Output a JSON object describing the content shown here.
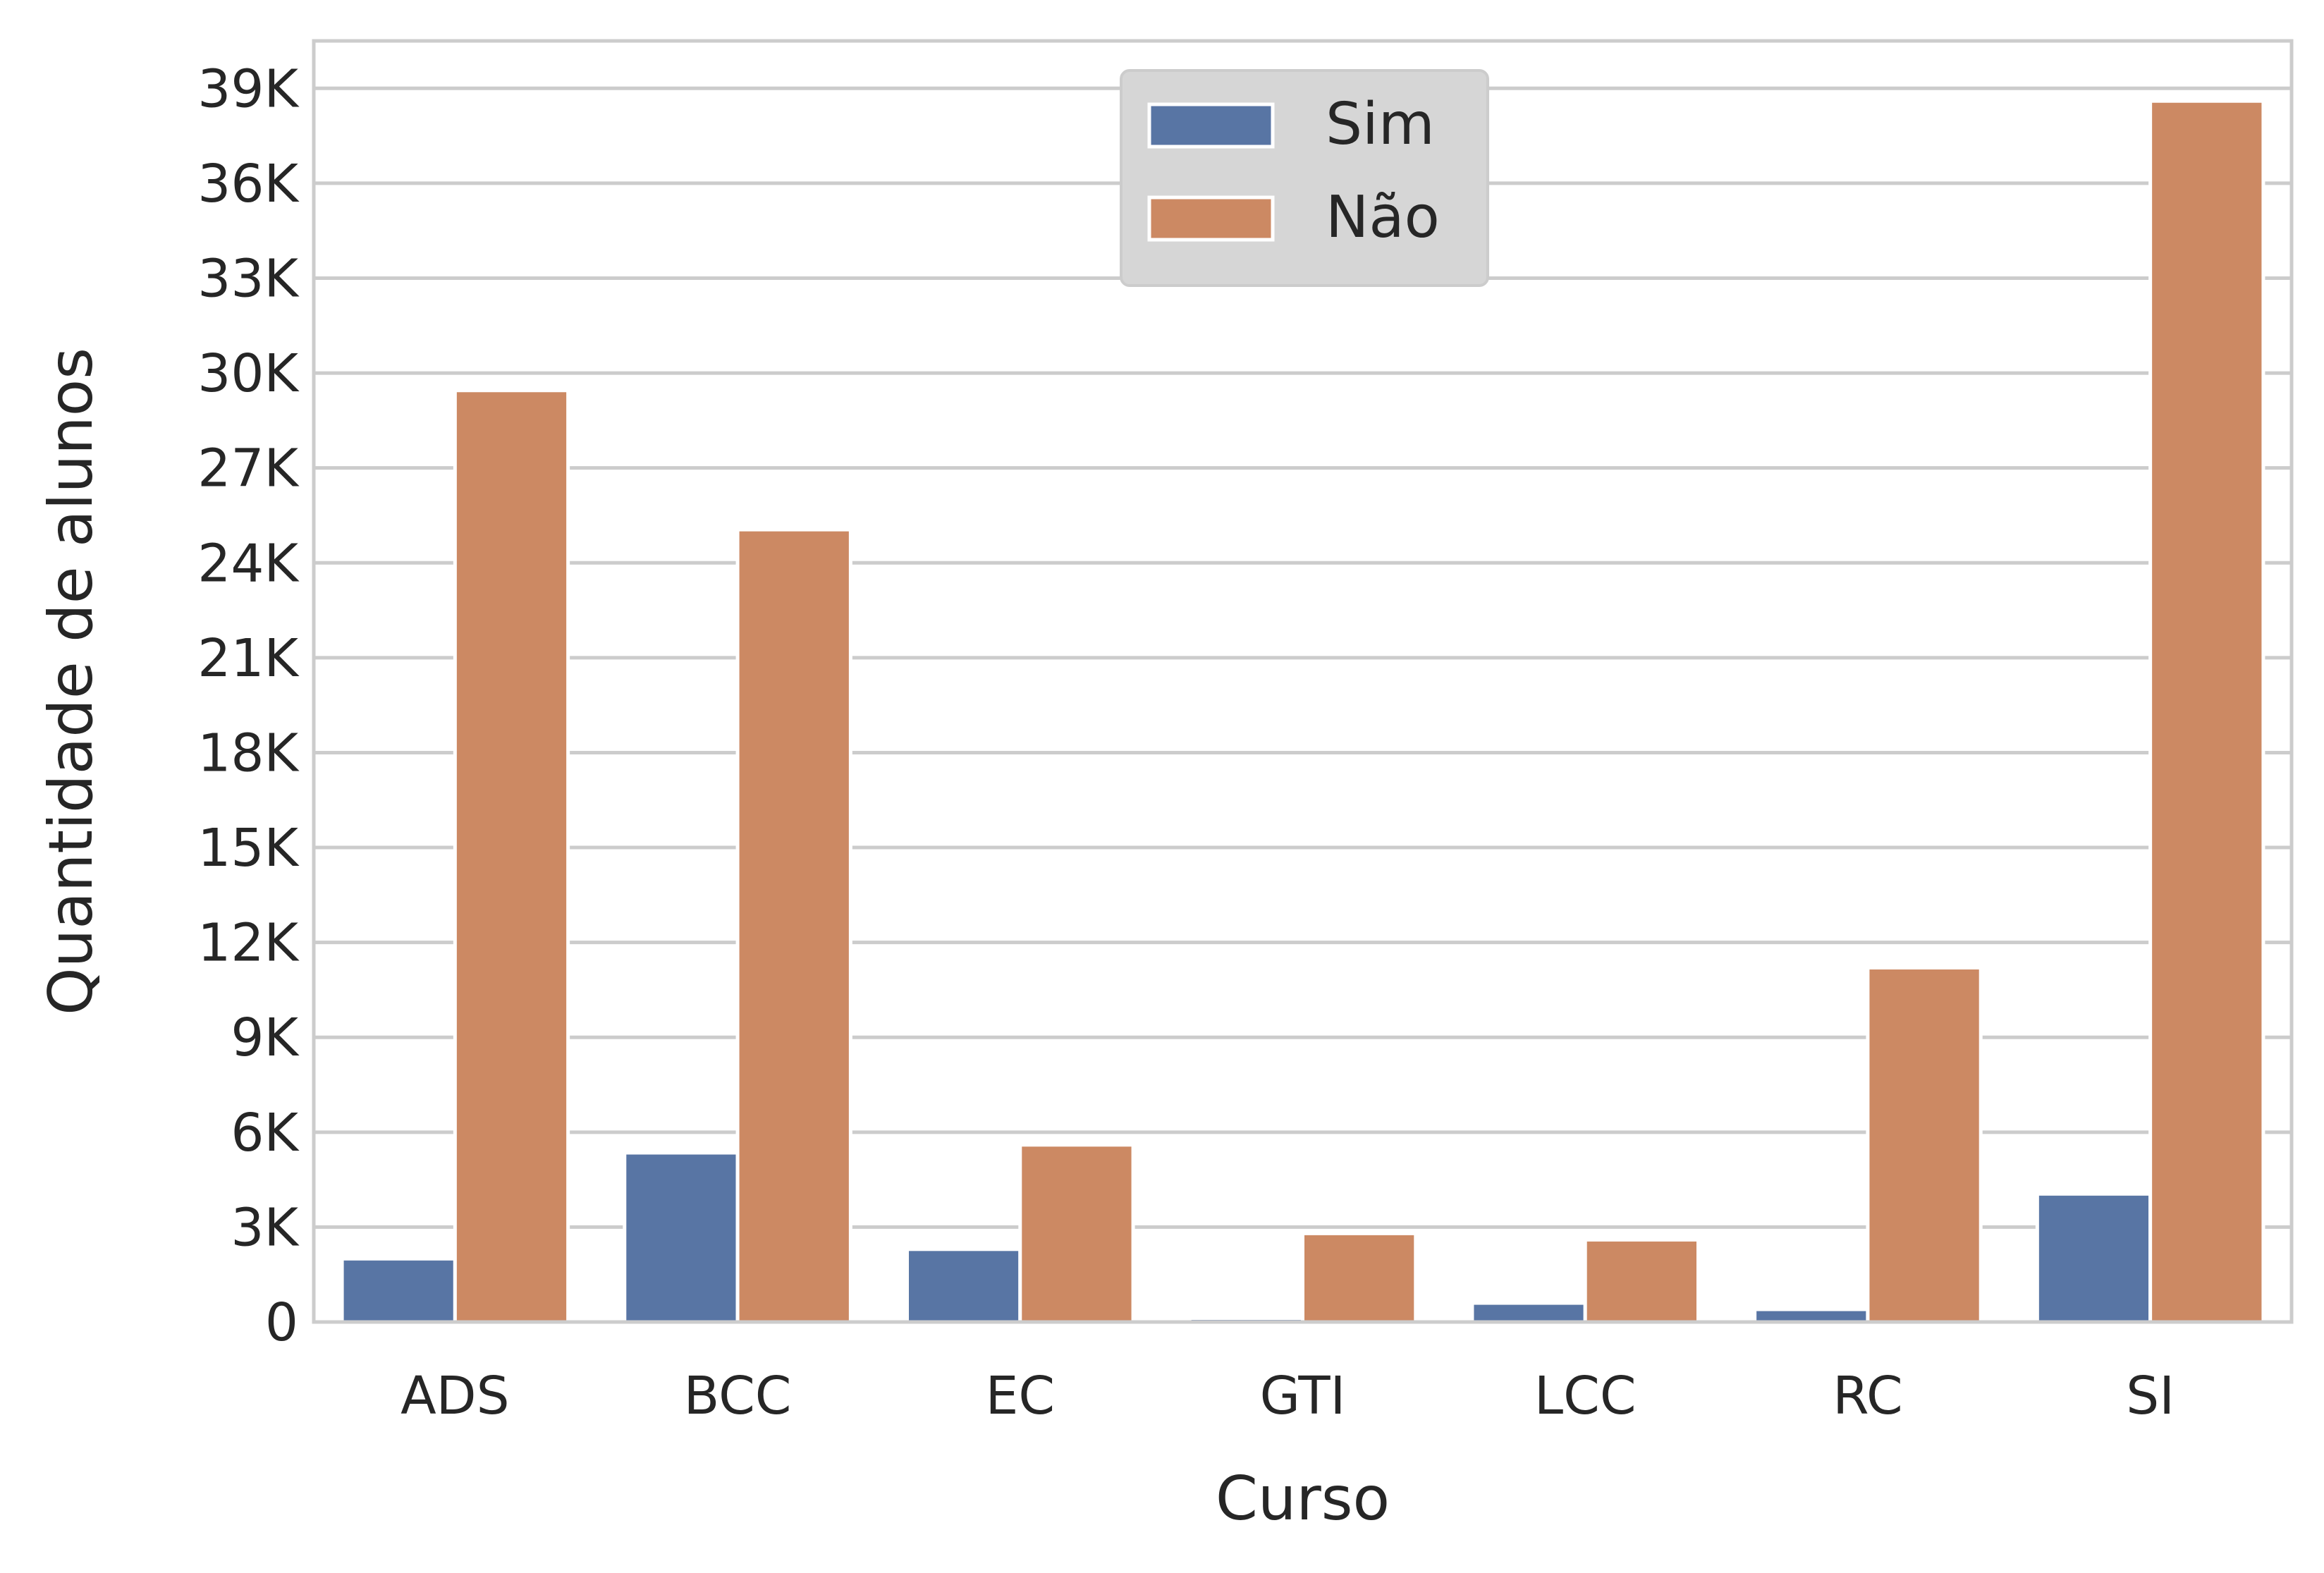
{
  "chart_data": {
    "type": "bar",
    "xlabel": "Curso",
    "ylabel": "Quantidade de alunos",
    "categories": [
      "ADS",
      "BCC",
      "EC",
      "GTI",
      "LCC",
      "RC",
      "SI"
    ],
    "series": [
      {
        "name": "Sim",
        "color": "#5875a4",
        "values": [
          2000,
          5350,
          2300,
          120,
          600,
          400,
          4050
        ]
      },
      {
        "name": "Não",
        "color": "#cc8963",
        "values": [
          29450,
          25050,
          5600,
          2800,
          2600,
          11200,
          38600
        ]
      }
    ],
    "yticks": [
      0,
      3000,
      6000,
      9000,
      12000,
      15000,
      18000,
      21000,
      24000,
      27000,
      30000,
      33000,
      36000,
      39000
    ],
    "ytick_labels": [
      "0",
      "3K",
      "6K",
      "9K",
      "12K",
      "15K",
      "18K",
      "21K",
      "24K",
      "27K",
      "30K",
      "33K",
      "36K",
      "39K"
    ],
    "ylim": [
      0,
      40500
    ],
    "grid": true,
    "legend_position": "top-center"
  }
}
